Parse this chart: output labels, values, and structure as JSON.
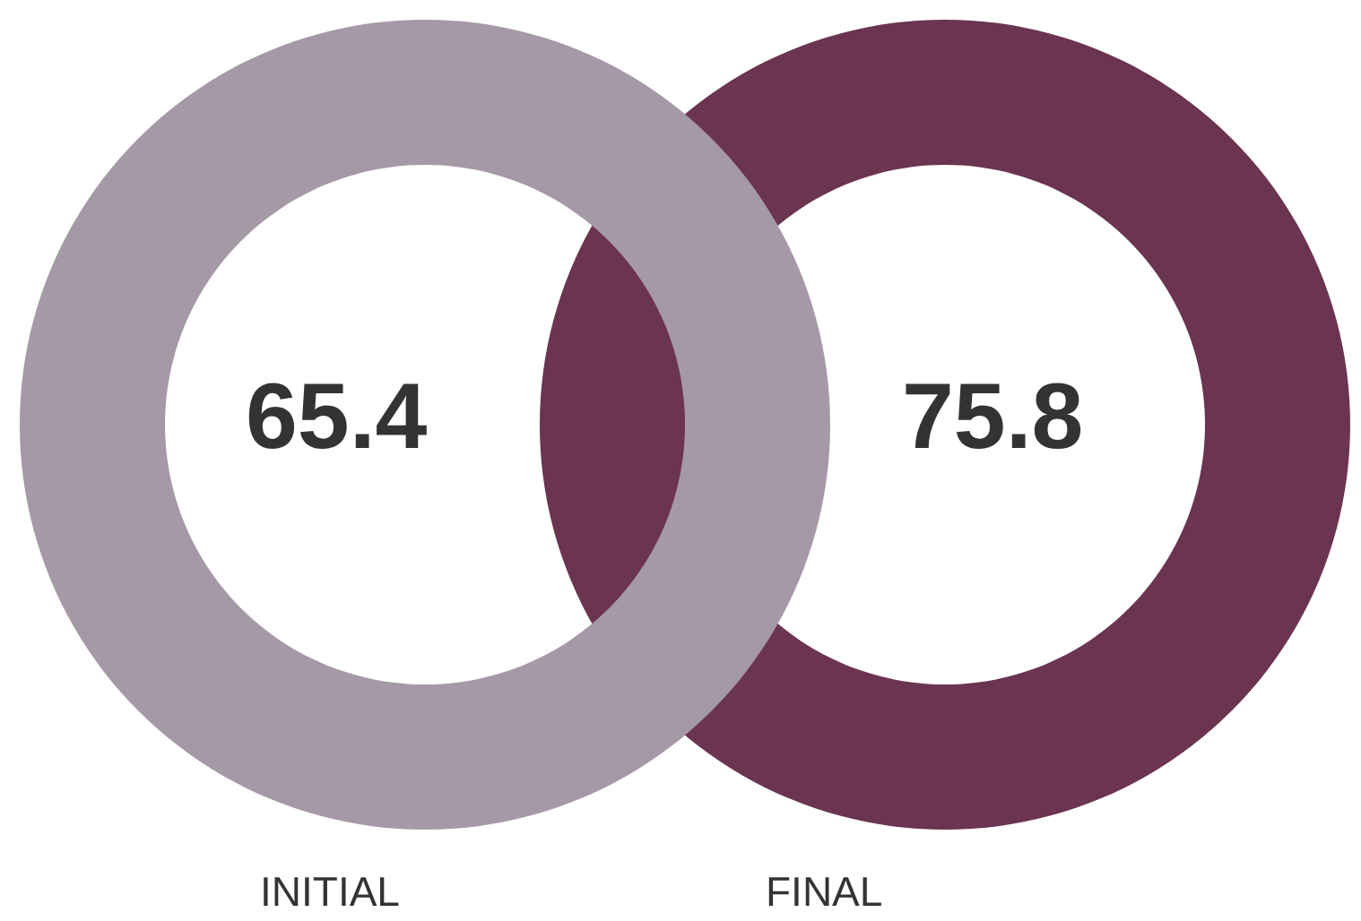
{
  "chart_data": {
    "type": "other",
    "categories": [
      "INITIAL",
      "FINAL"
    ],
    "values": [
      65.4,
      75.8
    ],
    "colors": [
      "#a699a7",
      "#6b3450"
    ],
    "data_labels": true
  }
}
